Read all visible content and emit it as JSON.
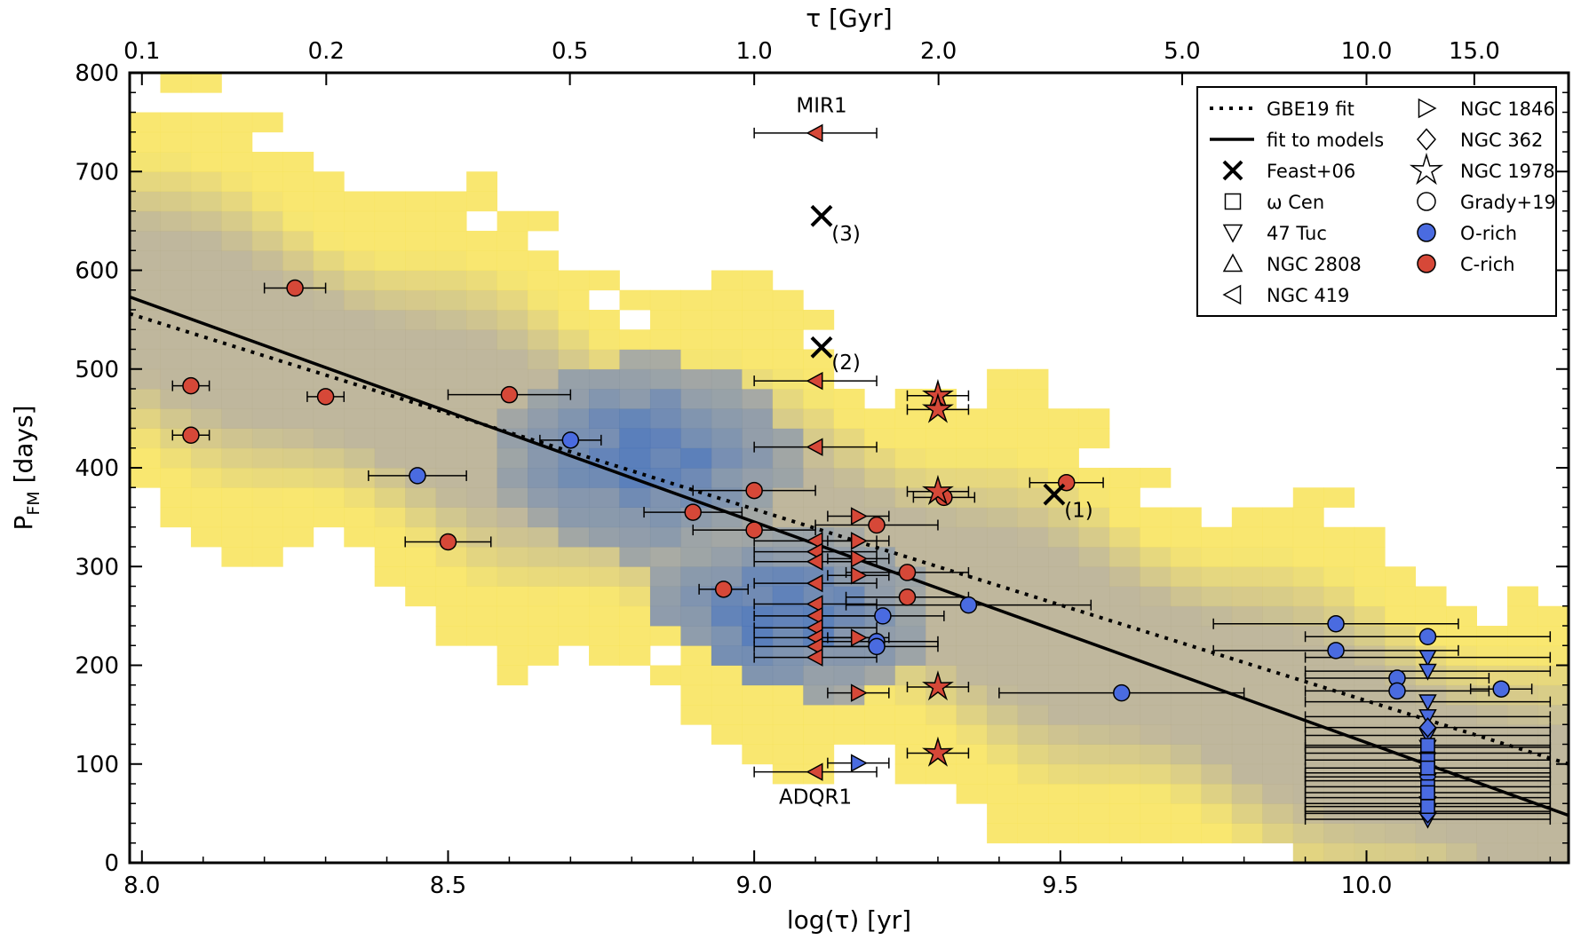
{
  "chart_data": {
    "type": "scatter",
    "xlabel": "log(τ) [yr]",
    "ylabel_main": "P",
    "ylabel_sub": "FM",
    "ylabel_rest": " [days]",
    "top_xlabel": "τ [Gyr]",
    "xlim": [
      7.98,
      10.33
    ],
    "ylim": [
      0,
      800
    ],
    "xticks": [
      8.0,
      8.5,
      9.0,
      9.5,
      10.0
    ],
    "xtick_labels": [
      "8.0",
      "8.5",
      "9.0",
      "9.5",
      "10.0"
    ],
    "yticks": [
      0,
      100,
      200,
      300,
      400,
      500,
      600,
      700,
      800
    ],
    "ytick_labels": [
      "0",
      "100",
      "200",
      "300",
      "400",
      "500",
      "600",
      "700",
      "800"
    ],
    "top_ticks_gyr": [
      0.1,
      0.2,
      0.5,
      1.0,
      2.0,
      5.0,
      10.0,
      15.0
    ],
    "top_tick_labels": [
      "0.1",
      "0.2",
      "0.5",
      "1.0",
      "2.0",
      "5.0",
      "10.0",
      "15.0"
    ],
    "colors": {
      "c_rich": "#d64838",
      "o_rich": "#4a6be0",
      "yellow": "#f8e45c",
      "blue": "#2f62b8",
      "grey": "#b6ad8f"
    },
    "lines": [
      {
        "name": "GBE19 fit",
        "style": "dotted",
        "points": [
          [
            7.98,
            556
          ],
          [
            10.33,
            100
          ]
        ]
      },
      {
        "name": "fit to models",
        "style": "solid",
        "points": [
          [
            7.98,
            573
          ],
          [
            10.33,
            48
          ]
        ]
      }
    ],
    "legend": [
      {
        "label": "GBE19 fit",
        "symbol": "dotted-line"
      },
      {
        "label": "fit to models",
        "symbol": "solid-line"
      },
      {
        "label": "Feast+06",
        "symbol": "x"
      },
      {
        "label": "ω Cen",
        "symbol": "square"
      },
      {
        "label": "47 Tuc",
        "symbol": "triangle-down"
      },
      {
        "label": "NGC 2808",
        "symbol": "triangle-up"
      },
      {
        "label": "NGC 419",
        "symbol": "triangle-left"
      },
      {
        "label": "NGC 1846",
        "symbol": "triangle-right"
      },
      {
        "label": "NGC 362",
        "symbol": "diamond"
      },
      {
        "label": "NGC 1978",
        "symbol": "star"
      },
      {
        "label": "Grady+19",
        "symbol": "circle"
      },
      {
        "label": "O-rich",
        "symbol": "filled-circle-blue"
      },
      {
        "label": "C-rich",
        "symbol": "filled-circle-red"
      }
    ],
    "annotations": [
      {
        "text": "MIR1",
        "x": 9.11,
        "y": 760
      },
      {
        "text": "ADQR1",
        "x": 9.1,
        "y": 60
      },
      {
        "text": "(1)",
        "x": 9.53,
        "y": 350
      },
      {
        "text": "(2)",
        "x": 9.15,
        "y": 500
      },
      {
        "text": "(3)",
        "x": 9.15,
        "y": 630
      }
    ],
    "series": [
      {
        "name": "Grady+19",
        "marker": "circle",
        "points": [
          {
            "x": 8.08,
            "y": 483,
            "xerr": 0.03,
            "c": "C"
          },
          {
            "x": 8.08,
            "y": 433,
            "xerr": 0.03,
            "c": "C"
          },
          {
            "x": 8.25,
            "y": 582,
            "xerr": 0.05,
            "c": "C"
          },
          {
            "x": 8.3,
            "y": 472,
            "xerr": 0.03,
            "c": "C"
          },
          {
            "x": 8.45,
            "y": 392,
            "xerr": 0.08,
            "c": "O"
          },
          {
            "x": 8.5,
            "y": 325,
            "xerr": 0.07,
            "c": "C"
          },
          {
            "x": 8.6,
            "y": 474,
            "xerr": 0.1,
            "c": "C"
          },
          {
            "x": 8.7,
            "y": 428,
            "xerr": 0.05,
            "c": "O"
          },
          {
            "x": 8.9,
            "y": 355,
            "xerr": 0.08,
            "c": "C"
          },
          {
            "x": 8.95,
            "y": 277,
            "xerr": 0.04,
            "c": "C"
          },
          {
            "x": 9.0,
            "y": 377,
            "xerr": 0.1,
            "c": "C"
          },
          {
            "x": 9.0,
            "y": 337,
            "xerr": 0.1,
            "c": "C"
          },
          {
            "x": 9.2,
            "y": 342,
            "xerr": 0.1,
            "c": "C"
          },
          {
            "x": 9.21,
            "y": 250,
            "xerr": 0.1,
            "c": "O"
          },
          {
            "x": 9.2,
            "y": 224,
            "xerr": 0.1,
            "c": "O"
          },
          {
            "x": 9.2,
            "y": 219,
            "xerr": 0.1,
            "c": "O"
          },
          {
            "x": 9.25,
            "y": 294,
            "xerr": 0.1,
            "c": "C"
          },
          {
            "x": 9.25,
            "y": 269,
            "xerr": 0.1,
            "c": "C"
          },
          {
            "x": 9.31,
            "y": 370,
            "xerr": 0.05,
            "c": "C"
          },
          {
            "x": 9.35,
            "y": 261,
            "xerr": 0.2,
            "c": "O"
          },
          {
            "x": 9.51,
            "y": 385,
            "xerr": 0.06,
            "c": "C"
          },
          {
            "x": 9.6,
            "y": 172,
            "xerr": 0.2,
            "c": "O"
          },
          {
            "x": 9.95,
            "y": 242,
            "xerr": 0.2,
            "c": "O"
          },
          {
            "x": 9.95,
            "y": 215,
            "xerr": 0.2,
            "c": "O"
          },
          {
            "x": 10.05,
            "y": 187,
            "xerr": 0.15,
            "c": "O"
          },
          {
            "x": 10.05,
            "y": 174,
            "xerr": 0.15,
            "c": "O"
          },
          {
            "x": 10.1,
            "y": 229,
            "xerr": 0.2,
            "c": "O"
          },
          {
            "x": 10.22,
            "y": 176,
            "xerr": 0.05,
            "c": "O"
          }
        ]
      },
      {
        "name": "Feast+06",
        "marker": "x",
        "points": [
          {
            "x": 9.11,
            "y": 655
          },
          {
            "x": 9.11,
            "y": 522
          },
          {
            "x": 9.49,
            "y": 373
          }
        ]
      },
      {
        "name": "NGC 419",
        "marker": "triangle-left",
        "points": [
          {
            "x": 9.1,
            "y": 739,
            "xerr": 0.1,
            "c": "C"
          },
          {
            "x": 9.1,
            "y": 488,
            "xerr": 0.1,
            "c": "C"
          },
          {
            "x": 9.1,
            "y": 421,
            "xerr": 0.1,
            "c": "C"
          },
          {
            "x": 9.1,
            "y": 326,
            "xerr": 0.1,
            "c": "C"
          },
          {
            "x": 9.1,
            "y": 315,
            "xerr": 0.1,
            "c": "C"
          },
          {
            "x": 9.1,
            "y": 305,
            "xerr": 0.1,
            "c": "C"
          },
          {
            "x": 9.1,
            "y": 283,
            "xerr": 0.1,
            "c": "C"
          },
          {
            "x": 9.1,
            "y": 262,
            "xerr": 0.1,
            "c": "C"
          },
          {
            "x": 9.1,
            "y": 250,
            "xerr": 0.1,
            "c": "C"
          },
          {
            "x": 9.1,
            "y": 238,
            "xerr": 0.1,
            "c": "C"
          },
          {
            "x": 9.1,
            "y": 228,
            "xerr": 0.1,
            "c": "C"
          },
          {
            "x": 9.1,
            "y": 219,
            "xerr": 0.1,
            "c": "C"
          },
          {
            "x": 9.1,
            "y": 208,
            "xerr": 0.1,
            "c": "C"
          },
          {
            "x": 9.1,
            "y": 92,
            "xerr": 0.1,
            "c": "C"
          }
        ]
      },
      {
        "name": "NGC 1846",
        "marker": "triangle-right",
        "points": [
          {
            "x": 9.17,
            "y": 351,
            "xerr": 0.05,
            "c": "C"
          },
          {
            "x": 9.17,
            "y": 326,
            "xerr": 0.05,
            "c": "C"
          },
          {
            "x": 9.17,
            "y": 308,
            "xerr": 0.05,
            "c": "C"
          },
          {
            "x": 9.17,
            "y": 291,
            "xerr": 0.05,
            "c": "C"
          },
          {
            "x": 9.17,
            "y": 228,
            "xerr": 0.05,
            "c": "C"
          },
          {
            "x": 9.17,
            "y": 172,
            "xerr": 0.05,
            "c": "C"
          },
          {
            "x": 9.17,
            "y": 101,
            "xerr": 0.05,
            "c": "O"
          }
        ]
      },
      {
        "name": "NGC 1978",
        "marker": "star",
        "points": [
          {
            "x": 9.3,
            "y": 473,
            "xerr": 0.05,
            "c": "C"
          },
          {
            "x": 9.3,
            "y": 459,
            "xerr": 0.05,
            "c": "C"
          },
          {
            "x": 9.3,
            "y": 376,
            "xerr": 0.05,
            "c": "C"
          },
          {
            "x": 9.3,
            "y": 178,
            "xerr": 0.05,
            "c": "C"
          },
          {
            "x": 9.3,
            "y": 111,
            "xerr": 0.05,
            "c": "C"
          }
        ]
      },
      {
        "name": "47 Tuc",
        "marker": "triangle-down",
        "points": [
          {
            "x": 10.1,
            "y": 208,
            "xerr": 0.2,
            "c": "O"
          },
          {
            "x": 10.1,
            "y": 194,
            "xerr": 0.2,
            "c": "O"
          },
          {
            "x": 10.1,
            "y": 163,
            "xerr": 0.2,
            "c": "O"
          },
          {
            "x": 10.1,
            "y": 148,
            "xerr": 0.2,
            "c": "O"
          },
          {
            "x": 10.1,
            "y": 129,
            "xerr": 0.2,
            "c": "O"
          },
          {
            "x": 10.1,
            "y": 117,
            "xerr": 0.2,
            "c": "O"
          },
          {
            "x": 10.1,
            "y": 91,
            "xerr": 0.2,
            "c": "O"
          },
          {
            "x": 10.1,
            "y": 83,
            "xerr": 0.2,
            "c": "O"
          },
          {
            "x": 10.1,
            "y": 60,
            "xerr": 0.2,
            "c": "O"
          },
          {
            "x": 10.1,
            "y": 52,
            "xerr": 0.2,
            "c": "O"
          },
          {
            "x": 10.1,
            "y": 44,
            "xerr": 0.2,
            "c": "O"
          }
        ]
      },
      {
        "name": "NGC 362",
        "marker": "diamond",
        "points": [
          {
            "x": 10.1,
            "y": 137,
            "xerr": 0.2,
            "c": "O"
          },
          {
            "x": 10.1,
            "y": 111,
            "xerr": 0.2,
            "c": "O"
          },
          {
            "x": 10.1,
            "y": 87,
            "xerr": 0.2,
            "c": "O"
          },
          {
            "x": 10.1,
            "y": 66,
            "xerr": 0.2,
            "c": "O"
          },
          {
            "x": 10.1,
            "y": 50,
            "xerr": 0.2,
            "c": "O"
          }
        ]
      },
      {
        "name": "ω Cen",
        "marker": "square",
        "points": [
          {
            "x": 10.1,
            "y": 119,
            "xerr": 0.2,
            "c": "O"
          },
          {
            "x": 10.1,
            "y": 104,
            "xerr": 0.2,
            "c": "O"
          },
          {
            "x": 10.1,
            "y": 96,
            "xerr": 0.2,
            "c": "O"
          },
          {
            "x": 10.1,
            "y": 77,
            "xerr": 0.2,
            "c": "O"
          },
          {
            "x": 10.1,
            "y": 71,
            "xerr": 0.2,
            "c": "O"
          },
          {
            "x": 10.1,
            "y": 57,
            "xerr": 0.2,
            "c": "O"
          }
        ]
      }
    ]
  }
}
